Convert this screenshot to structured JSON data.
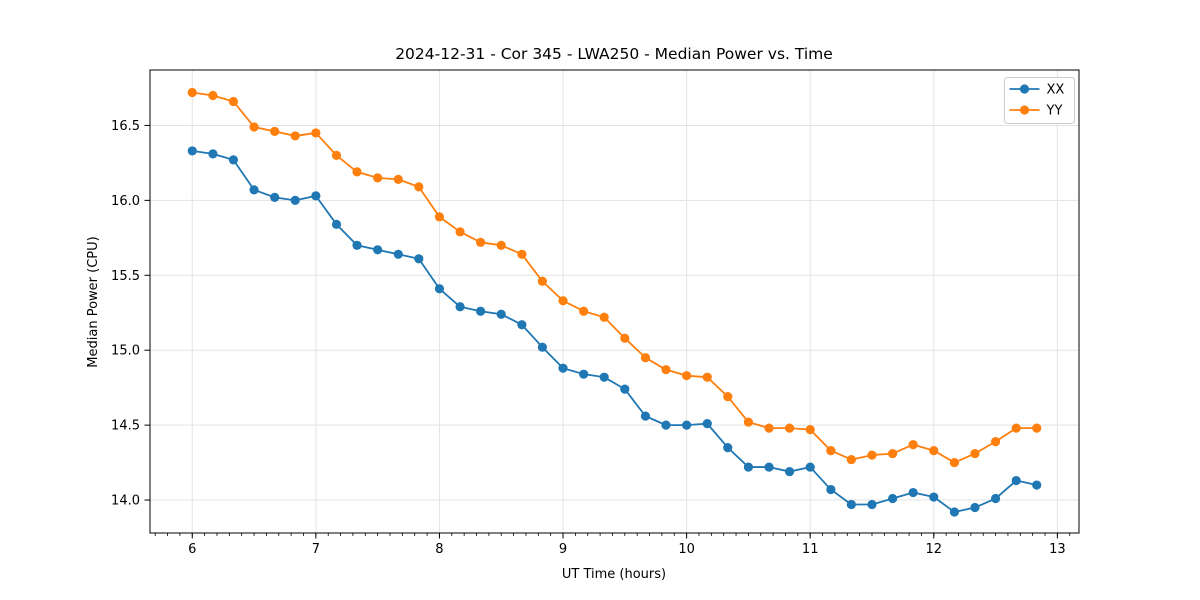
{
  "chart_data": {
    "type": "line",
    "title": "2024-12-31 - Cor 345 - LWA250 - Median Power vs. Time",
    "xlabel": "UT Time (hours)",
    "ylabel": "Median Power (CPU)",
    "xlim": [
      5.658,
      13.175
    ],
    "ylim": [
      13.78,
      16.87
    ],
    "x_ticks": [
      6,
      7,
      8,
      9,
      10,
      11,
      12,
      13
    ],
    "x_tick_labels": [
      "6",
      "7",
      "8",
      "9",
      "10",
      "11",
      "12",
      "13"
    ],
    "x_minor_tick_step": 0.1,
    "y_ticks": [
      14.0,
      14.5,
      15.0,
      15.5,
      16.0,
      16.5
    ],
    "y_tick_labels": [
      "14.0",
      "14.5",
      "15.0",
      "15.5",
      "16.0",
      "16.5"
    ],
    "grid": true,
    "grid_color": "#e3e3e3",
    "spine_color": "#000000",
    "background_color": "#ffffff",
    "legend_position": "upper right",
    "legend_labels": [
      "XX",
      "YY"
    ],
    "x": [
      6.0,
      6.167,
      6.333,
      6.5,
      6.667,
      6.833,
      7.0,
      7.167,
      7.333,
      7.5,
      7.667,
      7.833,
      8.0,
      8.167,
      8.333,
      8.5,
      8.667,
      8.833,
      9.0,
      9.167,
      9.333,
      9.5,
      9.667,
      9.833,
      10.0,
      10.167,
      10.333,
      10.5,
      10.667,
      10.833,
      11.0,
      11.167,
      11.333,
      11.5,
      11.667,
      11.833,
      12.0,
      12.167,
      12.333,
      12.5,
      12.667,
      12.833
    ],
    "series": [
      {
        "name": "XX",
        "color": "#1f77b4",
        "values": [
          16.33,
          16.31,
          16.27,
          16.07,
          16.02,
          16.0,
          16.03,
          15.84,
          15.7,
          15.67,
          15.64,
          15.61,
          15.41,
          15.29,
          15.26,
          15.24,
          15.17,
          15.02,
          14.88,
          14.84,
          14.82,
          14.74,
          14.56,
          14.5,
          14.5,
          14.51,
          14.35,
          14.22,
          14.22,
          14.19,
          14.22,
          14.07,
          13.97,
          13.97,
          14.01,
          14.05,
          14.02,
          13.92,
          13.95,
          14.01,
          14.13,
          14.1
        ]
      },
      {
        "name": "YY",
        "color": "#ff7f0e",
        "values": [
          16.72,
          16.7,
          16.66,
          16.49,
          16.46,
          16.43,
          16.45,
          16.3,
          16.19,
          16.15,
          16.14,
          16.09,
          15.89,
          15.79,
          15.72,
          15.7,
          15.64,
          15.46,
          15.33,
          15.26,
          15.22,
          15.08,
          14.95,
          14.87,
          14.83,
          14.82,
          14.69,
          14.52,
          14.48,
          14.48,
          14.47,
          14.33,
          14.27,
          14.3,
          14.31,
          14.37,
          14.33,
          14.25,
          14.31,
          14.39,
          14.48,
          14.48
        ]
      }
    ]
  }
}
